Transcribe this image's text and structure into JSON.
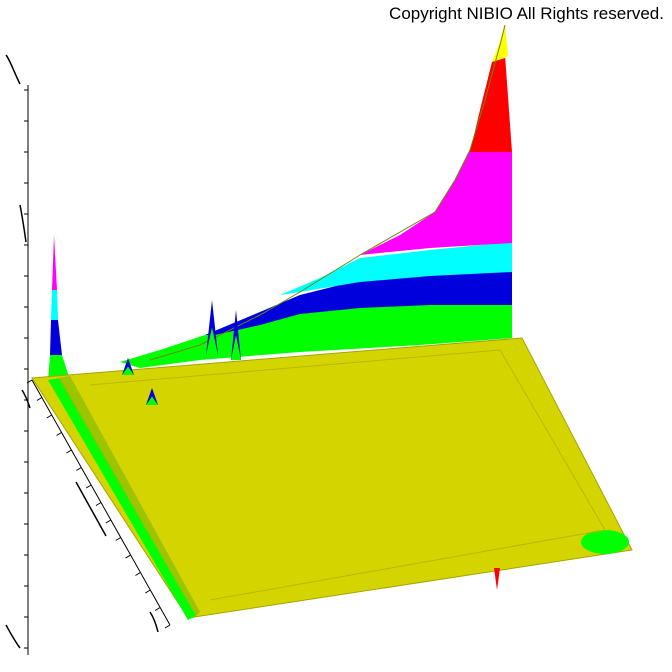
{
  "copyright": "Copyright NIBIO All Rights reserved.",
  "chart_data": {
    "type": "surface-3d",
    "title": "",
    "xlabel": "",
    "ylabel": "",
    "zlabel": "",
    "grid": false,
    "colors": {
      "base": "#d4d400",
      "level1": "#00ff00",
      "level2": "#0000dd",
      "level3": "#00ffff",
      "level4": "#ff00ff",
      "level5": "#ff0000",
      "level6": "#ffff00"
    },
    "color_levels": [
      "base",
      "level1",
      "level2",
      "level3",
      "level4",
      "level5",
      "level6"
    ],
    "peaks": [
      {
        "name": "right-edge-peak",
        "relative_height": 1.0
      },
      {
        "name": "left-edge-peak",
        "relative_height": 0.45
      },
      {
        "name": "middle-ridge-peak",
        "relative_height": 0.22
      }
    ]
  }
}
